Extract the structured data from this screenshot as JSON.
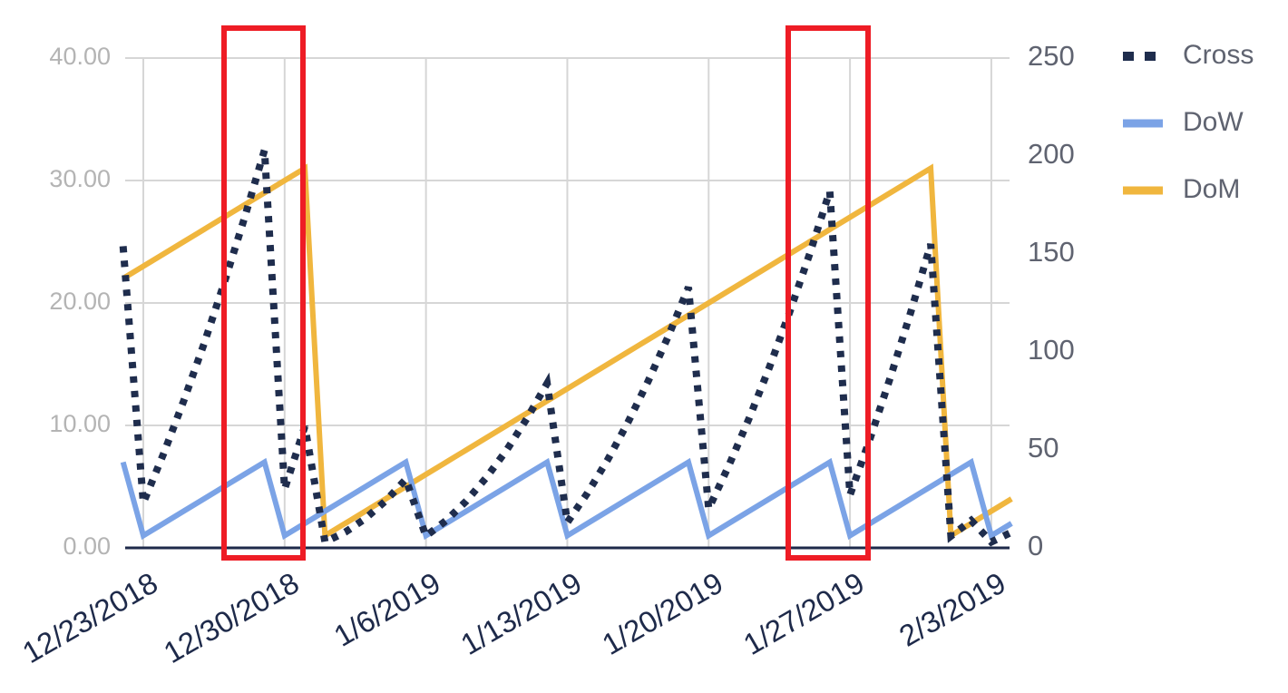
{
  "chart_data": {
    "type": "line",
    "categories": [
      null,
      "12/23/2018",
      null,
      null,
      null,
      null,
      null,
      null,
      "12/30/2018",
      null,
      null,
      null,
      null,
      null,
      null,
      "1/6/2019",
      null,
      null,
      null,
      null,
      null,
      null,
      "1/13/2019",
      null,
      null,
      null,
      null,
      null,
      null,
      "1/20/2019",
      null,
      null,
      null,
      null,
      null,
      null,
      "1/27/2019",
      null,
      null,
      null,
      null,
      null,
      null,
      "2/3/2019",
      null
    ],
    "series": [
      {
        "name": "Cross",
        "color": "#1f2d4d",
        "axis": "y2",
        "dashed": true,
        "values": [
          154,
          23,
          48,
          75,
          104,
          135,
          168,
          203,
          30,
          62,
          3,
          8,
          15,
          24,
          35,
          6,
          14,
          24,
          36,
          50,
          66,
          84,
          13,
          28,
          45,
          64,
          85,
          108,
          133,
          20,
          42,
          66,
          92,
          120,
          150,
          182,
          27,
          56,
          87,
          120,
          155,
          6,
          14,
          3,
          8
        ]
      },
      {
        "name": "DoW",
        "color": "#7ba3e6",
        "values": [
          7,
          1,
          2,
          3,
          4,
          5,
          6,
          7,
          1,
          2,
          3,
          4,
          5,
          6,
          7,
          1,
          2,
          3,
          4,
          5,
          6,
          7,
          1,
          2,
          3,
          4,
          5,
          6,
          7,
          1,
          2,
          3,
          4,
          5,
          6,
          7,
          1,
          2,
          3,
          4,
          5,
          6,
          7,
          1,
          2
        ]
      },
      {
        "name": "DoM",
        "color": "#f0b63e",
        "values": [
          22,
          23,
          24,
          25,
          26,
          27,
          28,
          29,
          30,
          31,
          1,
          2,
          3,
          4,
          5,
          6,
          7,
          8,
          9,
          10,
          11,
          12,
          13,
          14,
          15,
          16,
          17,
          18,
          19,
          20,
          21,
          22,
          23,
          24,
          25,
          26,
          27,
          28,
          29,
          30,
          31,
          1,
          2,
          3,
          4
        ]
      }
    ],
    "ylim": [
      0,
      40
    ],
    "yticks": [
      {
        "value": 0,
        "label": "0.00"
      },
      {
        "value": 10,
        "label": "10.00"
      },
      {
        "value": 20,
        "label": "20.00"
      },
      {
        "value": 30,
        "label": "30.00"
      },
      {
        "value": 40,
        "label": "40.00"
      }
    ],
    "y2lim": [
      0,
      250
    ],
    "y2ticks": [
      0,
      50,
      100,
      150,
      200,
      250
    ],
    "grid": true,
    "legend": "right"
  }
}
